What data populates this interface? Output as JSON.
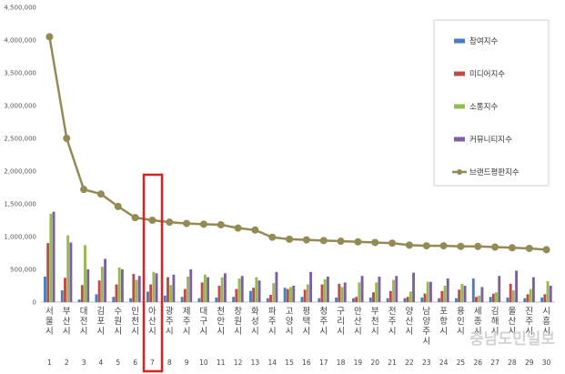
{
  "chart_data": {
    "type": "bar",
    "title": "",
    "xlabel": "",
    "ylabel": "",
    "ylim": [
      0,
      4500000
    ],
    "yticks": [
      "0",
      "500,000",
      "1,000,000",
      "1,500,000",
      "2,000,000",
      "2,500,000",
      "3,000,000",
      "3,500,000",
      "4,000,000",
      "4,500,000"
    ],
    "ytick_values": [
      0,
      500000,
      1000000,
      1500000,
      2000000,
      2500000,
      3000000,
      3500000,
      4000000,
      4500000
    ],
    "grid": false,
    "legend_position": "right",
    "categories": [
      "서울시",
      "부산시",
      "대전시",
      "김포시",
      "수원시",
      "인천시",
      "아산시",
      "광주시",
      "제주시",
      "대구시",
      "천안시",
      "창원시",
      "화성시",
      "파주시",
      "고양시",
      "평택시",
      "청주시",
      "구리시",
      "안산시",
      "부천시",
      "전주시",
      "양산시",
      "남양주시",
      "포항시",
      "용인시",
      "세종시",
      "김해시",
      "울산시",
      "진주시",
      "시흥시"
    ],
    "ranks": [
      "1",
      "2",
      "3",
      "4",
      "5",
      "6",
      "7",
      "8",
      "9",
      "10",
      "11",
      "12",
      "13",
      "14",
      "15",
      "16",
      "17",
      "18",
      "19",
      "20",
      "21",
      "22",
      "23",
      "24",
      "25",
      "26",
      "27",
      "28",
      "29",
      "30"
    ],
    "highlight_rank": 7,
    "series": [
      {
        "name": "참여지수",
        "kind": "bar",
        "color": "#4a7ebb",
        "values": [
          390000,
          180000,
          40000,
          120000,
          80000,
          60000,
          160000,
          100000,
          80000,
          60000,
          70000,
          80000,
          170000,
          60000,
          220000,
          80000,
          60000,
          70000,
          60000,
          70000,
          60000,
          60000,
          70000,
          60000,
          60000,
          360000,
          80000,
          70000,
          60000,
          70000
        ]
      },
      {
        "name": "미디어지수",
        "kind": "bar",
        "color": "#be4b48",
        "values": [
          900000,
          370000,
          260000,
          330000,
          270000,
          430000,
          270000,
          380000,
          200000,
          300000,
          250000,
          200000,
          220000,
          110000,
          200000,
          190000,
          270000,
          280000,
          80000,
          150000,
          170000,
          80000,
          130000,
          170000,
          190000,
          80000,
          130000,
          280000,
          120000,
          120000
        ]
      },
      {
        "name": "소통지수",
        "kind": "bar",
        "color": "#98b954",
        "values": [
          1350000,
          1020000,
          870000,
          540000,
          530000,
          340000,
          460000,
          260000,
          390000,
          420000,
          380000,
          360000,
          380000,
          290000,
          230000,
          270000,
          350000,
          230000,
          300000,
          300000,
          340000,
          160000,
          310000,
          250000,
          280000,
          100000,
          150000,
          180000,
          200000,
          320000
        ]
      },
      {
        "name": "커뮤니티지수",
        "kind": "bar",
        "color": "#7d60a0",
        "values": [
          1380000,
          910000,
          500000,
          660000,
          500000,
          400000,
          440000,
          420000,
          500000,
          380000,
          440000,
          400000,
          330000,
          460000,
          250000,
          460000,
          390000,
          300000,
          400000,
          390000,
          400000,
          450000,
          310000,
          360000,
          250000,
          230000,
          400000,
          480000,
          380000,
          250000
        ]
      },
      {
        "name": "브랜드평판지수",
        "kind": "line",
        "color": "#948a54",
        "values": [
          4050000,
          2500000,
          1720000,
          1650000,
          1460000,
          1290000,
          1250000,
          1220000,
          1200000,
          1190000,
          1180000,
          1130000,
          1100000,
          990000,
          960000,
          950000,
          940000,
          930000,
          920000,
          910000,
          900000,
          870000,
          860000,
          860000,
          850000,
          850000,
          840000,
          830000,
          820000,
          800000
        ]
      }
    ]
  },
  "watermark": "충남도민일보"
}
